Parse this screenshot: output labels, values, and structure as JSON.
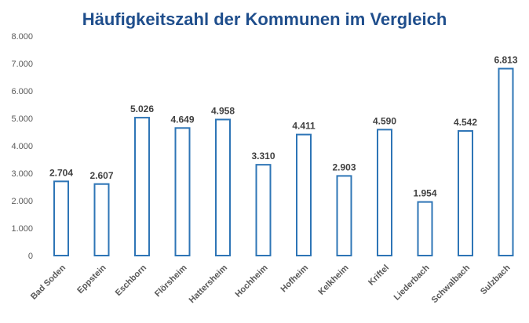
{
  "chart_data": {
    "type": "bar",
    "title": "Häufigkeitszahl der Kommunen im Vergleich",
    "categories": [
      "Bad Soden",
      "Eppstein",
      "Eschborn",
      "Flörsheim",
      "Hattersheim",
      "Hochheim",
      "Hofheim",
      "Kelkheim",
      "Kriftel",
      "Liederbach",
      "Schwalbach",
      "Sulzbach"
    ],
    "values": [
      2704,
      2607,
      5026,
      4649,
      4958,
      3310,
      4411,
      2903,
      4590,
      1954,
      4542,
      6813
    ],
    "value_labels": [
      "2.704",
      "2.607",
      "5.026",
      "4.649",
      "4.958",
      "3.310",
      "4.411",
      "2.903",
      "4.590",
      "1.954",
      "4.542",
      "6.813"
    ],
    "ylim": [
      0,
      8000
    ],
    "yticks": [
      0,
      1000,
      2000,
      3000,
      4000,
      5000,
      6000,
      7000,
      8000
    ],
    "ytick_labels": [
      "0",
      "1.000",
      "2.000",
      "3.000",
      "4.000",
      "5.000",
      "6.000",
      "7.000",
      "8.000"
    ],
    "xlabel": "",
    "ylabel": "",
    "grid": false,
    "legend": "none",
    "colors": {
      "bar_outline": "#2e75b6",
      "bar_fill": "#ffffff",
      "title": "#1f4e8c",
      "text": "#595959"
    }
  }
}
